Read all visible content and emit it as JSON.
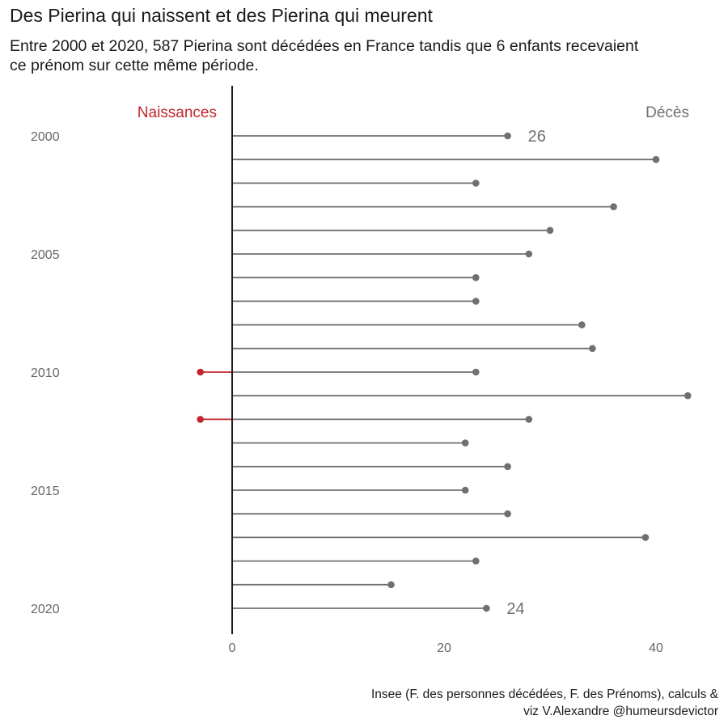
{
  "header": {
    "title": "Des Pierina qui naissent et des Pierina qui meurent",
    "subtitle": "Entre 2000 et 2020, 587 Pierina sont décédées en France tandis que 6 enfants recevaient ce prénom sur cette même période."
  },
  "caption": {
    "line1": "Insee (F. des personnes décédées, F. des Prénoms), calculs &",
    "line2": "viz V.Alexandre @humeursdevictor"
  },
  "colors": {
    "births": "#c0272d",
    "deaths": "#707070",
    "axis": "#1a1a1a",
    "tick_text": "#666666"
  },
  "chart_data": {
    "type": "lollipop",
    "years": [
      2000,
      2001,
      2002,
      2003,
      2004,
      2005,
      2006,
      2007,
      2008,
      2009,
      2010,
      2011,
      2012,
      2013,
      2014,
      2015,
      2016,
      2017,
      2018,
      2019,
      2020
    ],
    "series": [
      {
        "name": "Naissances",
        "values": [
          0,
          0,
          0,
          0,
          0,
          0,
          0,
          0,
          0,
          0,
          3,
          0,
          3,
          0,
          0,
          0,
          0,
          0,
          0,
          0,
          0
        ]
      },
      {
        "name": "Décès",
        "values": [
          26,
          40,
          23,
          36,
          30,
          28,
          23,
          23,
          33,
          34,
          23,
          43,
          28,
          22,
          26,
          22,
          26,
          39,
          23,
          15,
          24
        ]
      }
    ],
    "y_tick_labels": [
      "2000",
      "2005",
      "2010",
      "2015",
      "2020"
    ],
    "x_tick_labels": [
      "0",
      "20",
      "40"
    ],
    "xlim": [
      -14,
      46
    ],
    "data_labels": [
      {
        "year": 2000,
        "text": "26"
      },
      {
        "year": 2020,
        "text": "24"
      }
    ]
  }
}
